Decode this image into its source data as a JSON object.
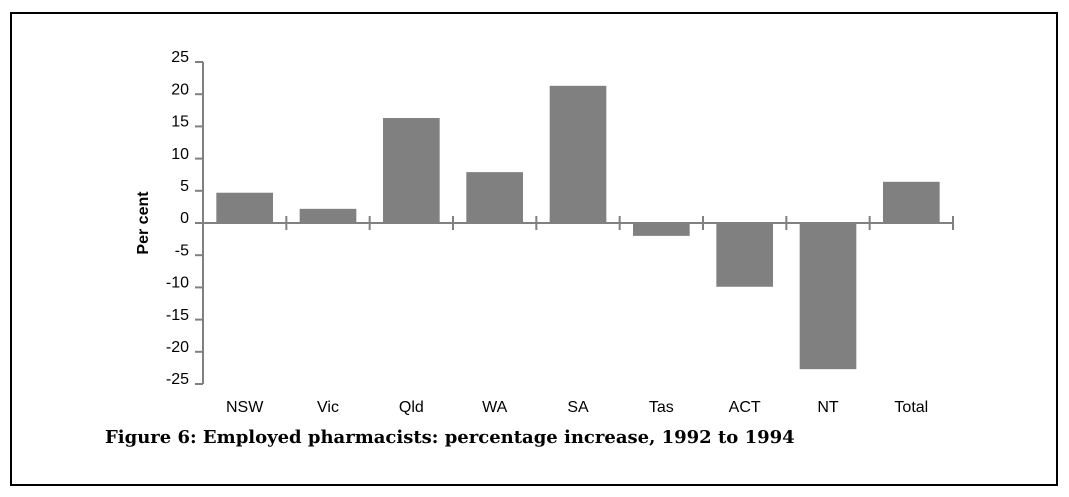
{
  "chart_data": {
    "type": "bar",
    "caption": "Figure 6: Employed pharmacists: percentage increase, 1992 to 1994",
    "y_label": "Per cent",
    "categories": [
      "NSW",
      "Vic",
      "Qld",
      "WA",
      "SA",
      "Tas",
      "ACT",
      "NT",
      "Total"
    ],
    "values": [
      4.7,
      2.2,
      16.3,
      7.9,
      21.3,
      -2.0,
      -9.9,
      -22.7,
      6.4
    ],
    "color": "#808080",
    "ylim": [
      -25,
      25
    ],
    "yticks": [
      -25,
      -20,
      -15,
      -10,
      -5,
      0,
      5,
      10,
      15,
      20,
      25
    ],
    "grid": false
  }
}
